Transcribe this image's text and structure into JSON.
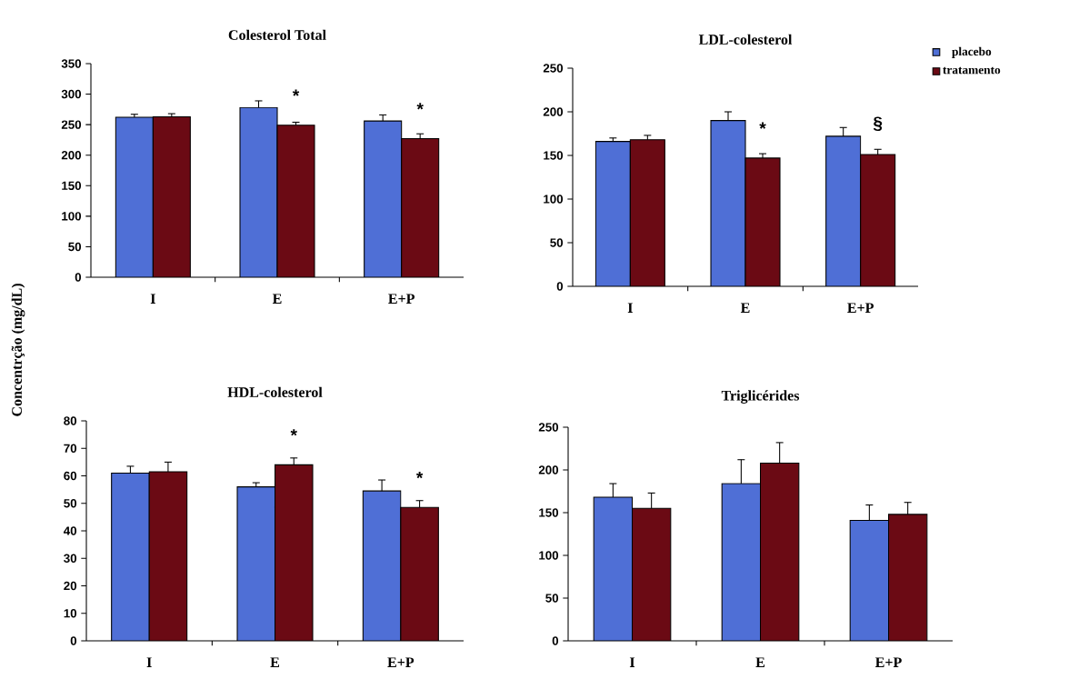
{
  "chart_data": [
    {
      "type": "bar",
      "title": "Colesterol Total",
      "ylabel": "Concentrção (mg/dL)",
      "categories": [
        "I",
        "E",
        "E+P"
      ],
      "ylim": [
        0,
        350
      ],
      "yticks": [
        0,
        50,
        100,
        150,
        200,
        250,
        300,
        350
      ],
      "series": [
        {
          "color": "#4f6fd6",
          "values": [
            262,
            278,
            256
          ],
          "errors": [
            [
              262,
              267
            ],
            [
              278,
              289
            ],
            [
              256,
              266
            ]
          ]
        },
        {
          "color": "#6b0a14",
          "values": [
            263,
            249,
            227
          ],
          "errors": [
            [
              263,
              268
            ],
            [
              249,
              254
            ],
            [
              227,
              235
            ]
          ]
        }
      ],
      "annotations": [
        {
          "text": "*",
          "x": "E",
          "y": 249
        },
        {
          "text": "*",
          "x": "E+P",
          "y": 227
        }
      ]
    },
    {
      "type": "bar",
      "title": "LDL-colesterol",
      "categories": [
        "I",
        "E",
        "E+P"
      ],
      "ylim": [
        0,
        250
      ],
      "yticks": [
        0,
        50,
        100,
        150,
        200,
        250
      ],
      "legend": "top right",
      "series": [
        {
          "name": "placebo",
          "color": "#4f6fd6",
          "values": [
            166,
            190,
            172
          ],
          "errors": [
            [
              166,
              170
            ],
            [
              190,
              200
            ],
            [
              172,
              182
            ]
          ]
        },
        {
          "name": "tratamento",
          "color": "#6b0a14",
          "values": [
            168,
            147,
            151
          ],
          "errors": [
            [
              168,
              173
            ],
            [
              147,
              152
            ],
            [
              151,
              157
            ]
          ]
        }
      ],
      "annotations": [
        {
          "text": "*",
          "x": "E",
          "y": 147
        },
        {
          "text": "§",
          "x": "E+P",
          "y": 151
        }
      ]
    },
    {
      "type": "bar",
      "title": "HDL-colesterol",
      "categories": [
        "I",
        "E",
        "E+P"
      ],
      "ylim": [
        0,
        80
      ],
      "yticks": [
        0,
        10,
        20,
        30,
        40,
        50,
        60,
        70,
        80
      ],
      "series": [
        {
          "color": "#4f6fd6",
          "values": [
            61,
            56,
            54.5
          ],
          "errors": [
            [
              61,
              63.5
            ],
            [
              56,
              57.5
            ],
            [
              54.5,
              58.5
            ]
          ]
        },
        {
          "color": "#6b0a14",
          "values": [
            61.5,
            64,
            48.5
          ],
          "errors": [
            [
              61.5,
              65
            ],
            [
              64,
              66.5
            ],
            [
              48.5,
              51
            ]
          ]
        }
      ],
      "annotations": [
        {
          "text": "*",
          "x": "E",
          "y": 64
        },
        {
          "text": "*",
          "x": "E+P",
          "y": 48.5
        }
      ]
    },
    {
      "type": "bar",
      "title": "Triglicérides",
      "categories": [
        "I",
        "E",
        "E+P"
      ],
      "ylim": [
        0,
        250
      ],
      "yticks": [
        0,
        50,
        100,
        150,
        200,
        250
      ],
      "series": [
        {
          "color": "#4f6fd6",
          "values": [
            168,
            184,
            141
          ],
          "errors": [
            [
              168,
              184
            ],
            [
              184,
              212
            ],
            [
              141,
              159
            ]
          ]
        },
        {
          "color": "#6b0a14",
          "values": [
            155,
            208,
            148
          ],
          "errors": [
            [
              155,
              173
            ],
            [
              208,
              232
            ],
            [
              148,
              162
            ]
          ]
        }
      ]
    }
  ]
}
